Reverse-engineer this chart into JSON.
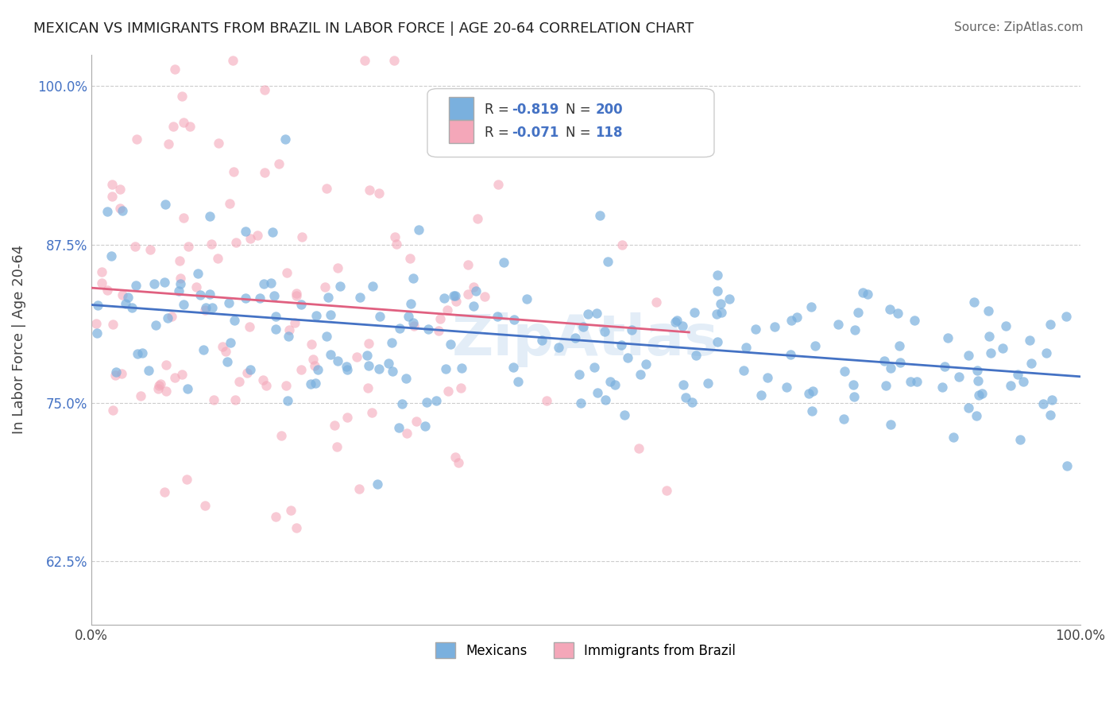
{
  "title": "MEXICAN VS IMMIGRANTS FROM BRAZIL IN LABOR FORCE | AGE 20-64 CORRELATION CHART",
  "source": "Source: ZipAtlas.com",
  "ylabel": "In Labor Force | Age 20-64",
  "y_ticklabels": [
    "62.5%",
    "75.0%",
    "87.5%",
    "100.0%"
  ],
  "legend_labels": [
    "Mexicans",
    "Immigrants from Brazil"
  ],
  "blue_R": "-0.819",
  "blue_N": "200",
  "pink_R": "-0.071",
  "pink_N": "118",
  "blue_color": "#7ab0de",
  "pink_color": "#f4a7b9",
  "blue_line_color": "#4472c4",
  "pink_line_color": "#e06080",
  "watermark": "ZipAtlas",
  "bg_color": "#ffffff",
  "grid_color": "#cccccc",
  "blue_scatter_alpha": 0.7,
  "pink_scatter_alpha": 0.6,
  "marker_size": 80,
  "xlim": [
    0.0,
    1.0
  ],
  "ylim": [
    0.575,
    1.025
  ],
  "y_ticks": [
    0.625,
    0.75,
    0.875,
    1.0
  ],
  "x_ticks": [
    0.0,
    1.0
  ]
}
